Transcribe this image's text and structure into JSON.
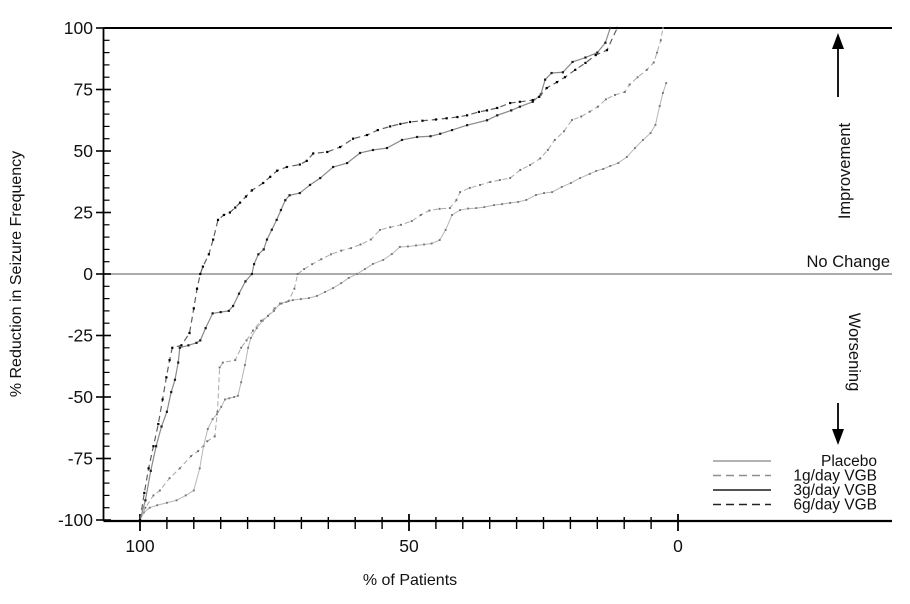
{
  "chart_data": {
    "type": "line",
    "title": "",
    "xlabel": "% of Patients",
    "ylabel": "% Reduction in Seizure Frequency",
    "x_axis": {
      "range": [
        100,
        0
      ],
      "reversed": true,
      "major_ticks": [
        100,
        50,
        0
      ],
      "major_tick_labels": [
        "100",
        "50",
        "0"
      ],
      "minor_tick_step": 5
    },
    "y_axis": {
      "range": [
        -100,
        100
      ],
      "major_ticks": [
        100,
        75,
        50,
        25,
        0,
        -25,
        -50,
        -75,
        -100
      ],
      "major_tick_labels": [
        "100",
        "75",
        "50",
        "25",
        "0",
        "-25",
        "-50",
        "-75",
        "-100"
      ],
      "minor_tick_step": 5
    },
    "reference_line": {
      "y": 0,
      "label": "No Change",
      "color": "#8f8f8f"
    },
    "annotations": {
      "improvement": "Improvement",
      "no_change": "No Change",
      "worsening": "Worsening"
    },
    "legend": {
      "position": "bottom-right",
      "entries": [
        "Placebo",
        "1g/day VGB",
        "3g/day VGB",
        "6g/day VGB"
      ]
    },
    "grid": false,
    "series": [
      {
        "name": "Placebo",
        "style": "solid",
        "color": "#b6b6b6",
        "legend_color": "#9a9a9a",
        "marker_color": "#787878",
        "width": 1,
        "points": [
          [
            100,
            -100
          ],
          [
            99.3,
            -97
          ],
          [
            98.2,
            -95
          ],
          [
            96.8,
            -94
          ],
          [
            95,
            -93
          ],
          [
            93.2,
            -92
          ],
          [
            91.5,
            -90
          ],
          [
            90,
            -88
          ],
          [
            88.9,
            -79
          ],
          [
            88.2,
            -70
          ],
          [
            87.4,
            -63
          ],
          [
            86.5,
            -59
          ],
          [
            85.7,
            -57
          ],
          [
            84.9,
            -54
          ],
          [
            84.2,
            -51
          ],
          [
            83.4,
            -50.5
          ],
          [
            82.5,
            -50
          ],
          [
            81.8,
            -49.5
          ],
          [
            81.2,
            -44
          ],
          [
            80.5,
            -37
          ],
          [
            79.9,
            -30
          ],
          [
            79.4,
            -26
          ],
          [
            78.3,
            -22
          ],
          [
            77.2,
            -19
          ],
          [
            76.2,
            -17
          ],
          [
            75.1,
            -15
          ],
          [
            74,
            -12
          ],
          [
            72.8,
            -11.4
          ],
          [
            71.6,
            -10.6
          ],
          [
            70.1,
            -10.2
          ],
          [
            68.6,
            -9.8
          ],
          [
            67.1,
            -8.9
          ],
          [
            65.6,
            -7.3
          ],
          [
            64.1,
            -5.7
          ],
          [
            62.6,
            -3.7
          ],
          [
            61.2,
            -1.6
          ],
          [
            59.7,
            0
          ],
          [
            58.2,
            2
          ],
          [
            56.7,
            4.1
          ],
          [
            54.8,
            5.7
          ],
          [
            53.2,
            8.1
          ],
          [
            51.7,
            11
          ],
          [
            50.2,
            11.2
          ],
          [
            48.7,
            11.6
          ],
          [
            47.2,
            12
          ],
          [
            45.8,
            12.4
          ],
          [
            44.3,
            13.8
          ],
          [
            43.2,
            17.9
          ],
          [
            42,
            24
          ],
          [
            40.5,
            26
          ],
          [
            39,
            26.6
          ],
          [
            37.5,
            26.8
          ],
          [
            36,
            27.2
          ],
          [
            34.2,
            28
          ],
          [
            32.7,
            28.4
          ],
          [
            31.2,
            28.9
          ],
          [
            29.7,
            29.3
          ],
          [
            28.2,
            30.1
          ],
          [
            26.4,
            32.1
          ],
          [
            24.9,
            32.9
          ],
          [
            23.4,
            33.3
          ],
          [
            21.6,
            35.4
          ],
          [
            19.9,
            37
          ],
          [
            18.2,
            39
          ],
          [
            16.4,
            40.7
          ],
          [
            15.2,
            41.9
          ],
          [
            13.9,
            42.7
          ],
          [
            12.6,
            43.9
          ],
          [
            11.1,
            45.1
          ],
          [
            9.5,
            47.6
          ],
          [
            8,
            51.2
          ],
          [
            6.5,
            54.5
          ],
          [
            5.1,
            57.3
          ],
          [
            4.2,
            60.6
          ],
          [
            3.4,
            68.3
          ],
          [
            2.8,
            73.6
          ],
          [
            2.2,
            77.6
          ]
        ]
      },
      {
        "name": "1g/day VGB",
        "style": "dashed",
        "dash": "5 3",
        "color": "#a9a9a9",
        "legend_color": "#8f8f8f",
        "marker_color": "#6e6e6e",
        "width": 1,
        "points": [
          [
            100,
            -100
          ],
          [
            99,
            -95
          ],
          [
            97.5,
            -90
          ],
          [
            96.3,
            -88
          ],
          [
            94.5,
            -83
          ],
          [
            92.6,
            -79
          ],
          [
            90.5,
            -74
          ],
          [
            89.2,
            -72
          ],
          [
            87.5,
            -68
          ],
          [
            86.1,
            -66
          ],
          [
            85.6,
            -56
          ],
          [
            85.2,
            -38
          ],
          [
            84.6,
            -36
          ],
          [
            82.3,
            -35
          ],
          [
            81.2,
            -30
          ],
          [
            80.2,
            -27
          ],
          [
            79,
            -23
          ],
          [
            77.5,
            -19
          ],
          [
            76.2,
            -17
          ],
          [
            75,
            -14
          ],
          [
            73.7,
            -12
          ],
          [
            72.4,
            -11
          ],
          [
            71.3,
            -6
          ],
          [
            70.7,
            0
          ],
          [
            69.5,
            2
          ],
          [
            68,
            4
          ],
          [
            66.3,
            6
          ],
          [
            64.5,
            8
          ],
          [
            62.6,
            9.5
          ],
          [
            60.8,
            10.5
          ],
          [
            59,
            12
          ],
          [
            57.1,
            14
          ],
          [
            55.4,
            17.9
          ],
          [
            53.5,
            19
          ],
          [
            51.5,
            20
          ],
          [
            49.5,
            21.5
          ],
          [
            47.8,
            24
          ],
          [
            46.2,
            25.8
          ],
          [
            44.3,
            26.5
          ],
          [
            42.4,
            26.8
          ],
          [
            41.2,
            30
          ],
          [
            40.5,
            33.3
          ],
          [
            38.7,
            35
          ],
          [
            36.8,
            36.2
          ],
          [
            34.9,
            37.4
          ],
          [
            33.1,
            38.2
          ],
          [
            31.2,
            39
          ],
          [
            29.3,
            42.3
          ],
          [
            27.5,
            44.3
          ],
          [
            25.6,
            47
          ],
          [
            24.2,
            50.4
          ],
          [
            22.9,
            54.5
          ],
          [
            21.2,
            58
          ],
          [
            19.7,
            62.6
          ],
          [
            18,
            64
          ],
          [
            16.4,
            66
          ],
          [
            14.9,
            68
          ],
          [
            13.4,
            71
          ],
          [
            11.7,
            72.8
          ],
          [
            9.9,
            74
          ],
          [
            9,
            77
          ],
          [
            7.5,
            80
          ],
          [
            5.8,
            83
          ],
          [
            4.5,
            86
          ],
          [
            3.9,
            90
          ],
          [
            3.2,
            95
          ],
          [
            2.8,
            100
          ]
        ]
      },
      {
        "name": "3g/day VGB",
        "style": "solid",
        "color": "#8a8a8a",
        "legend_color": "#1a1a1a",
        "marker_color": "#1a1a1a",
        "width": 1.2,
        "points": [
          [
            100,
            -100
          ],
          [
            99,
            -92
          ],
          [
            98,
            -80
          ],
          [
            97,
            -70
          ],
          [
            96,
            -62
          ],
          [
            95,
            -56
          ],
          [
            94.2,
            -48
          ],
          [
            93.5,
            -43
          ],
          [
            92.9,
            -36
          ],
          [
            92.6,
            -30
          ],
          [
            91,
            -29
          ],
          [
            89.5,
            -28
          ],
          [
            88.8,
            -27
          ],
          [
            87.8,
            -22
          ],
          [
            86.5,
            -16
          ],
          [
            85,
            -15.5
          ],
          [
            83.5,
            -15
          ],
          [
            82.7,
            -13
          ],
          [
            81.6,
            -8
          ],
          [
            80.4,
            -3
          ],
          [
            79.2,
            0
          ],
          [
            78.8,
            4
          ],
          [
            78,
            8
          ],
          [
            77,
            10
          ],
          [
            76.4,
            14
          ],
          [
            75.5,
            18
          ],
          [
            74.6,
            22
          ],
          [
            73.8,
            26
          ],
          [
            73,
            30
          ],
          [
            72.2,
            32
          ],
          [
            70.3,
            32.9
          ],
          [
            68.4,
            36.2
          ],
          [
            66.5,
            39
          ],
          [
            64.1,
            43.5
          ],
          [
            61.5,
            45.1
          ],
          [
            59.1,
            49.2
          ],
          [
            56.7,
            50.4
          ],
          [
            54.1,
            51.2
          ],
          [
            51.3,
            54.5
          ],
          [
            48.5,
            55.7
          ],
          [
            46,
            56
          ],
          [
            44.2,
            57
          ],
          [
            42,
            58.5
          ],
          [
            39.2,
            60.5
          ],
          [
            35.5,
            62.5
          ],
          [
            33.6,
            64.5
          ],
          [
            31,
            66.5
          ],
          [
            29.4,
            68
          ],
          [
            27,
            70
          ],
          [
            25.5,
            73
          ],
          [
            24.7,
            79
          ],
          [
            23.5,
            81.7
          ],
          [
            21.4,
            82
          ],
          [
            19.6,
            86.2
          ],
          [
            17.2,
            88
          ],
          [
            15,
            90
          ],
          [
            13.5,
            94
          ],
          [
            12.6,
            100
          ]
        ]
      },
      {
        "name": "6g/day VGB",
        "style": "dashed",
        "dash": "6 4",
        "color": "#5f5f5f",
        "legend_color": "#222222",
        "marker_color": "#000000",
        "width": 1.2,
        "points": [
          [
            100,
            -100
          ],
          [
            99.2,
            -89
          ],
          [
            98.4,
            -79
          ],
          [
            97.5,
            -70
          ],
          [
            96.6,
            -61
          ],
          [
            95.8,
            -51
          ],
          [
            95.1,
            -42
          ],
          [
            94.5,
            -35
          ],
          [
            94,
            -30
          ],
          [
            92.3,
            -29
          ],
          [
            90.8,
            -24
          ],
          [
            90,
            -14
          ],
          [
            89.4,
            -6
          ],
          [
            88.8,
            0
          ],
          [
            88.3,
            3
          ],
          [
            87.2,
            8
          ],
          [
            86.4,
            14
          ],
          [
            85.5,
            22
          ],
          [
            84.4,
            24
          ],
          [
            83.3,
            25
          ],
          [
            82.3,
            27
          ],
          [
            81.4,
            29
          ],
          [
            80.3,
            31.5
          ],
          [
            79.2,
            34
          ],
          [
            77.1,
            37
          ],
          [
            75.8,
            39.5
          ],
          [
            74.5,
            42
          ],
          [
            72.7,
            43.5
          ],
          [
            70.3,
            44.5
          ],
          [
            69,
            46
          ],
          [
            67.8,
            49
          ],
          [
            65.2,
            49.6
          ],
          [
            62.8,
            51.6
          ],
          [
            60.4,
            55
          ],
          [
            57.8,
            56.5
          ],
          [
            55.8,
            58.5
          ],
          [
            53.5,
            60
          ],
          [
            51.6,
            61
          ],
          [
            49.8,
            61.8
          ],
          [
            47.5,
            62.3
          ],
          [
            45,
            62.8
          ],
          [
            43,
            63.3
          ],
          [
            41,
            63.8
          ],
          [
            39.2,
            64.5
          ],
          [
            37,
            65.9
          ],
          [
            35.5,
            66.5
          ],
          [
            33.6,
            67.5
          ],
          [
            31.2,
            69.5
          ],
          [
            29.4,
            70
          ],
          [
            27,
            70.7
          ],
          [
            25.8,
            72
          ],
          [
            24.4,
            75.6
          ],
          [
            22.5,
            78
          ],
          [
            21,
            80
          ],
          [
            19.1,
            83
          ],
          [
            17.2,
            85.8
          ],
          [
            15.3,
            89
          ],
          [
            13.2,
            91
          ],
          [
            11.3,
            100
          ]
        ]
      }
    ]
  }
}
